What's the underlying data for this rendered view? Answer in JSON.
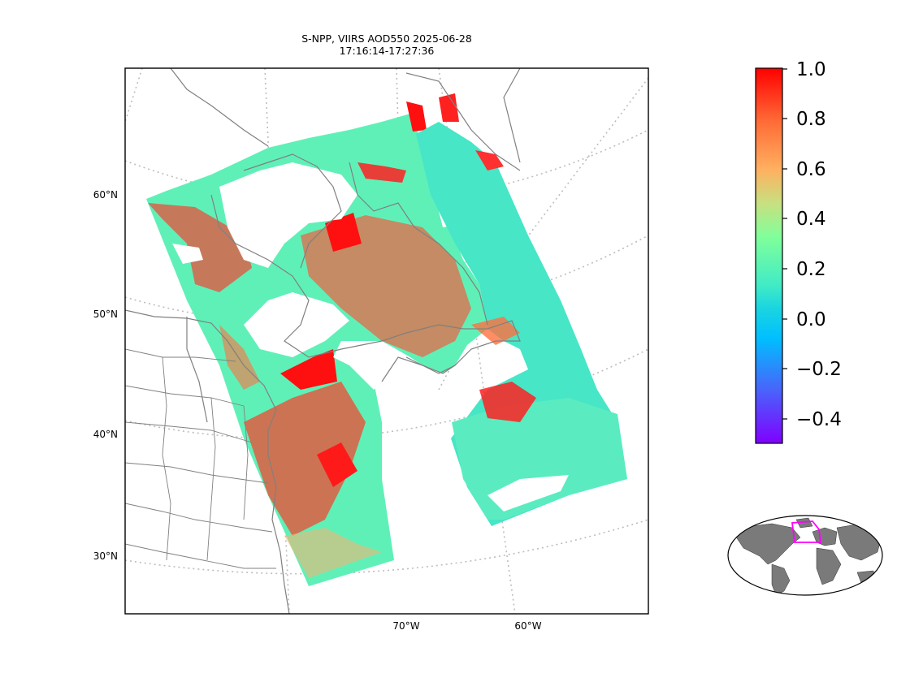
{
  "title": {
    "line1": "S-NPP, VIIRS AOD550 2025-06-28",
    "line2": "17:16:14-17:27:36"
  },
  "map": {
    "lat_labels": [
      "60°N",
      "50°N",
      "40°N",
      "30°N"
    ],
    "lon_labels": [
      "70°W",
      "60°W"
    ],
    "gridlines": "dotted",
    "coastline_color": "#808080",
    "border_color": "#808080"
  },
  "colorbar": {
    "colormap": "rainbow",
    "range": [
      -0.5,
      1.0
    ],
    "ticks": [
      "1.0",
      "0.8",
      "0.6",
      "0.4",
      "0.2",
      "0.0",
      "−0.2",
      "−0.4"
    ],
    "colors": [
      "#ff0000",
      "#ff8000",
      "#ffbf40",
      "#80ff80",
      "#40ffbf",
      "#20e0d0",
      "#00bfff",
      "#4060ff",
      "#8000ff"
    ]
  },
  "inset": {
    "type": "global locator map",
    "land_color": "#7a7a7a",
    "box_color": "#ff00ff"
  }
}
